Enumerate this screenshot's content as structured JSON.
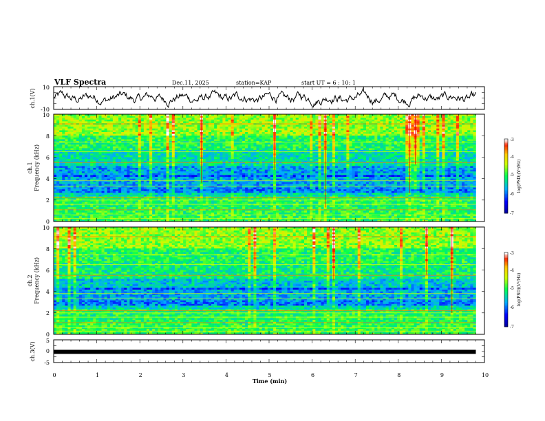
{
  "header": {
    "title": "VLF Spectra",
    "date": "Dec.11, 2025",
    "station": "station=KAP",
    "start_ut": "start  UT =  6 : 10: 1"
  },
  "chart_data": [
    {
      "type": "line",
      "name": "ch1-waveform",
      "ylabel": "ch.1(V)",
      "ylim": [
        -10,
        10
      ],
      "yticks": [
        "10",
        "-10"
      ],
      "xlim": [
        0,
        10
      ],
      "series_extent_min": 9.8
    },
    {
      "type": "heatmap",
      "name": "ch1-spectrogram",
      "ylabel_line1": "ch.1",
      "ylabel_line2": "Frequency (kHz)",
      "ylim": [
        0,
        10
      ],
      "yticks": [
        "0",
        "2",
        "4",
        "6",
        "8",
        "10"
      ],
      "xlim": [
        0,
        10
      ],
      "data_extent_min": 9.8,
      "colorbar": {
        "label": "log(PSD)(V²/Hz)",
        "range": [
          -7,
          -3
        ],
        "ticks": [
          "-3",
          "-4",
          "-5",
          "-6",
          "-7"
        ]
      }
    },
    {
      "type": "heatmap",
      "name": "ch2-spectrogram",
      "ylabel_line1": "ch.2",
      "ylabel_line2": "Frequency (kHz)",
      "ylim": [
        0,
        10
      ],
      "yticks": [
        "0",
        "2",
        "4",
        "6",
        "8",
        "10"
      ],
      "xlim": [
        0,
        10
      ],
      "data_extent_min": 9.8,
      "colorbar": {
        "label": "log(PSD)(V²/Hz)",
        "range": [
          -7,
          -3
        ],
        "ticks": [
          "-3",
          "-4",
          "-5",
          "-6",
          "-7"
        ]
      }
    },
    {
      "type": "line",
      "name": "ch3-waveform",
      "ylabel": "ch.3(V)",
      "ylim": [
        -5,
        5
      ],
      "yticks": [
        "5",
        "0",
        "-5"
      ],
      "xlim": [
        0,
        10
      ],
      "constant_value": -0.3,
      "series_extent_min": 9.8
    }
  ],
  "xaxis": {
    "label": "Time (min)",
    "ticks": [
      "0",
      "1",
      "2",
      "3",
      "4",
      "5",
      "6",
      "7",
      "8",
      "9",
      "10"
    ]
  },
  "colors": {
    "frame": "#000000",
    "spectrum_low": "#0000ff",
    "spectrum_mid": "#00ff00",
    "spectrum_high": "#ff0000"
  }
}
